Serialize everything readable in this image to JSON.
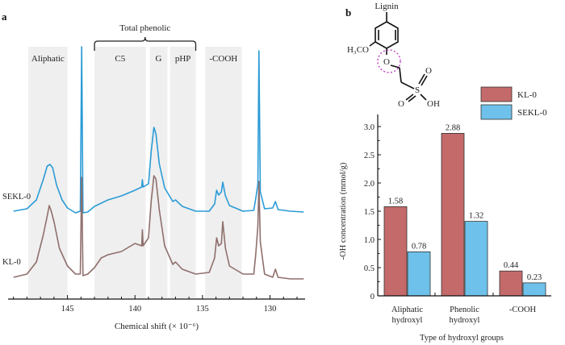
{
  "chart_data": [
    {
      "panel": "a",
      "type": "line",
      "title": "",
      "xlabel": "Chemical shift (× 10⁻⁶)",
      "ylabel": "",
      "x_reversed": true,
      "xlim": [
        149.4,
        127.4
      ],
      "xticks_major": [
        145,
        140,
        135,
        130
      ],
      "xticks_minor_step": 1,
      "grid": false,
      "regions": [
        {
          "label": "Aliphatic",
          "from": 147.9,
          "to": 145.0
        },
        {
          "label": "C5",
          "from": 143.0,
          "to": 139.2
        },
        {
          "label": "G",
          "from": 138.9,
          "to": 137.6
        },
        {
          "label": "pHP",
          "from": 137.4,
          "to": 135.5
        },
        {
          "label": "-COOH",
          "from": 134.8,
          "to": 132.1
        }
      ],
      "bracket": {
        "label": "Total phenolic",
        "from": 143.0,
        "to": 135.5
      },
      "series": [
        {
          "name": "SEKL-0",
          "color": "#2a9bd6",
          "baseline_offset": 1.0,
          "points": [
            [
              149.0,
              0.06
            ],
            [
              148.0,
              0.09
            ],
            [
              147.3,
              0.2
            ],
            [
              146.8,
              0.45
            ],
            [
              146.5,
              0.62
            ],
            [
              146.3,
              0.64
            ],
            [
              146.1,
              0.6
            ],
            [
              145.8,
              0.38
            ],
            [
              145.4,
              0.2
            ],
            [
              145.0,
              0.1
            ],
            [
              144.4,
              0.04
            ],
            [
              144.05,
              0.06
            ],
            [
              143.95,
              2.1
            ],
            [
              143.85,
              0.04
            ],
            [
              143.5,
              0.05
            ],
            [
              143.0,
              0.12
            ],
            [
              142.0,
              0.2
            ],
            [
              141.0,
              0.25
            ],
            [
              140.0,
              0.32
            ],
            [
              139.5,
              0.36
            ],
            [
              139.45,
              0.45
            ],
            [
              139.4,
              0.36
            ],
            [
              139.0,
              0.4
            ],
            [
              138.8,
              0.8
            ],
            [
              138.6,
              1.1
            ],
            [
              138.45,
              1.02
            ],
            [
              138.2,
              0.65
            ],
            [
              137.8,
              0.35
            ],
            [
              137.2,
              0.18
            ],
            [
              137.0,
              0.2
            ],
            [
              136.5,
              0.12
            ],
            [
              135.5,
              0.06
            ],
            [
              134.5,
              0.06
            ],
            [
              134.1,
              0.15
            ],
            [
              133.95,
              0.32
            ],
            [
              133.8,
              0.26
            ],
            [
              133.6,
              0.3
            ],
            [
              133.5,
              0.42
            ],
            [
              133.3,
              0.25
            ],
            [
              133.0,
              0.13
            ],
            [
              132.0,
              0.06
            ],
            [
              131.2,
              0.07
            ],
            [
              131.05,
              0.22
            ],
            [
              130.9,
              0.4
            ],
            [
              130.82,
              2.05
            ],
            [
              130.72,
              0.3
            ],
            [
              130.4,
              0.09
            ],
            [
              129.8,
              0.1
            ],
            [
              129.6,
              0.18
            ],
            [
              129.4,
              0.08
            ],
            [
              128.5,
              0.06
            ],
            [
              127.5,
              0.05
            ]
          ]
        },
        {
          "name": "KL-0",
          "color": "#8f6f6c",
          "baseline_offset": 0.0,
          "points": [
            [
              149.0,
              0.06
            ],
            [
              148.0,
              0.1
            ],
            [
              147.3,
              0.25
            ],
            [
              146.8,
              0.58
            ],
            [
              146.5,
              0.82
            ],
            [
              146.35,
              0.95
            ],
            [
              146.2,
              0.88
            ],
            [
              146.0,
              0.75
            ],
            [
              145.6,
              0.42
            ],
            [
              145.0,
              0.2
            ],
            [
              144.4,
              0.1
            ],
            [
              144.05,
              0.1
            ],
            [
              143.95,
              1.3
            ],
            [
              143.85,
              0.08
            ],
            [
              143.5,
              0.1
            ],
            [
              143.0,
              0.18
            ],
            [
              142.5,
              0.3
            ],
            [
              142.0,
              0.34
            ],
            [
              141.0,
              0.38
            ],
            [
              140.0,
              0.48
            ],
            [
              139.5,
              0.45
            ],
            [
              139.45,
              0.65
            ],
            [
              139.4,
              0.45
            ],
            [
              139.0,
              0.55
            ],
            [
              138.8,
              1.0
            ],
            [
              138.6,
              1.32
            ],
            [
              138.45,
              1.28
            ],
            [
              138.2,
              0.9
            ],
            [
              137.8,
              0.45
            ],
            [
              137.2,
              0.22
            ],
            [
              137.0,
              0.25
            ],
            [
              136.5,
              0.16
            ],
            [
              135.5,
              0.1
            ],
            [
              134.5,
              0.12
            ],
            [
              134.1,
              0.3
            ],
            [
              133.95,
              0.55
            ],
            [
              133.8,
              0.45
            ],
            [
              133.6,
              0.48
            ],
            [
              133.5,
              0.75
            ],
            [
              133.3,
              0.42
            ],
            [
              133.0,
              0.2
            ],
            [
              132.0,
              0.1
            ],
            [
              131.2,
              0.1
            ],
            [
              131.05,
              0.35
            ],
            [
              130.9,
              0.7
            ],
            [
              130.82,
              1.25
            ],
            [
              130.72,
              0.5
            ],
            [
              130.4,
              0.1
            ],
            [
              129.8,
              0.06
            ],
            [
              129.6,
              0.16
            ],
            [
              129.4,
              0.06
            ],
            [
              128.5,
              0.04
            ],
            [
              127.5,
              0.04
            ]
          ]
        }
      ]
    },
    {
      "panel": "b",
      "type": "bar",
      "title": "",
      "xlabel": "Type of hydroxyl groups",
      "ylabel": "-OH concentration (mmol/g)",
      "ylim": [
        0,
        3.2
      ],
      "yticks": [
        0,
        0.5,
        1.0,
        1.5,
        2.0,
        2.5,
        3.0
      ],
      "ytick_labels": [
        "0",
        "0.5",
        "1.0",
        "1.5",
        "2.0",
        "2.5",
        "3.0"
      ],
      "grid": false,
      "legend_position": "top-right",
      "categories": [
        "Aliphatic hydroxyl",
        "Phenolic hydroxyl",
        "-COOH"
      ],
      "category_lines": [
        [
          "Aliphatic",
          "hydroxyl"
        ],
        [
          "Phenolic",
          "hydroxyl"
        ],
        [
          "-COOH"
        ]
      ],
      "series": [
        {
          "name": "KL-0",
          "color": "#c46a6b",
          "values": [
            1.58,
            2.88,
            0.44
          ],
          "labels": [
            "1.58",
            "2.88",
            "0.44"
          ]
        },
        {
          "name": "SEKL-0",
          "color": "#6ec1ea",
          "values": [
            0.78,
            1.32,
            0.23
          ],
          "labels": [
            "0.78",
            "1.32",
            "0.23"
          ]
        }
      ]
    }
  ],
  "panel_labels": {
    "a": "a",
    "b": "b"
  },
  "structure": {
    "top_label": "Lignin",
    "methoxy_label": "H₃CO",
    "ether_oxygen": "O",
    "sulfur": "S",
    "oxo_top": "O",
    "oxo_bottom": "O",
    "hydroxyl": "OH",
    "highlight_color": "#c040c0"
  },
  "colors": {
    "region_fill": "#efefef",
    "axis": "#111111",
    "bar_outline": "#333333"
  }
}
